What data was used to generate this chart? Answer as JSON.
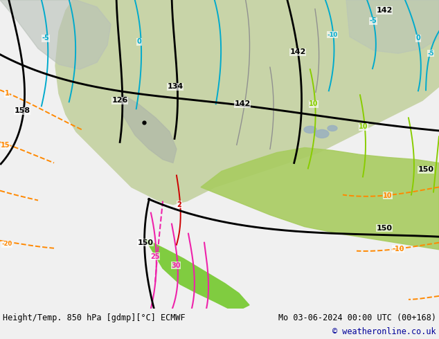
{
  "title_left": "Height/Temp. 850 hPa [gdmp][°C] ECMWF",
  "title_right": "Mo 03-06-2024 00:00 UTC (00+168)",
  "copyright": "© weatheronline.co.uk",
  "bg_color": "#c8d0d8",
  "figsize": [
    6.34,
    4.9
  ],
  "dpi": 100
}
